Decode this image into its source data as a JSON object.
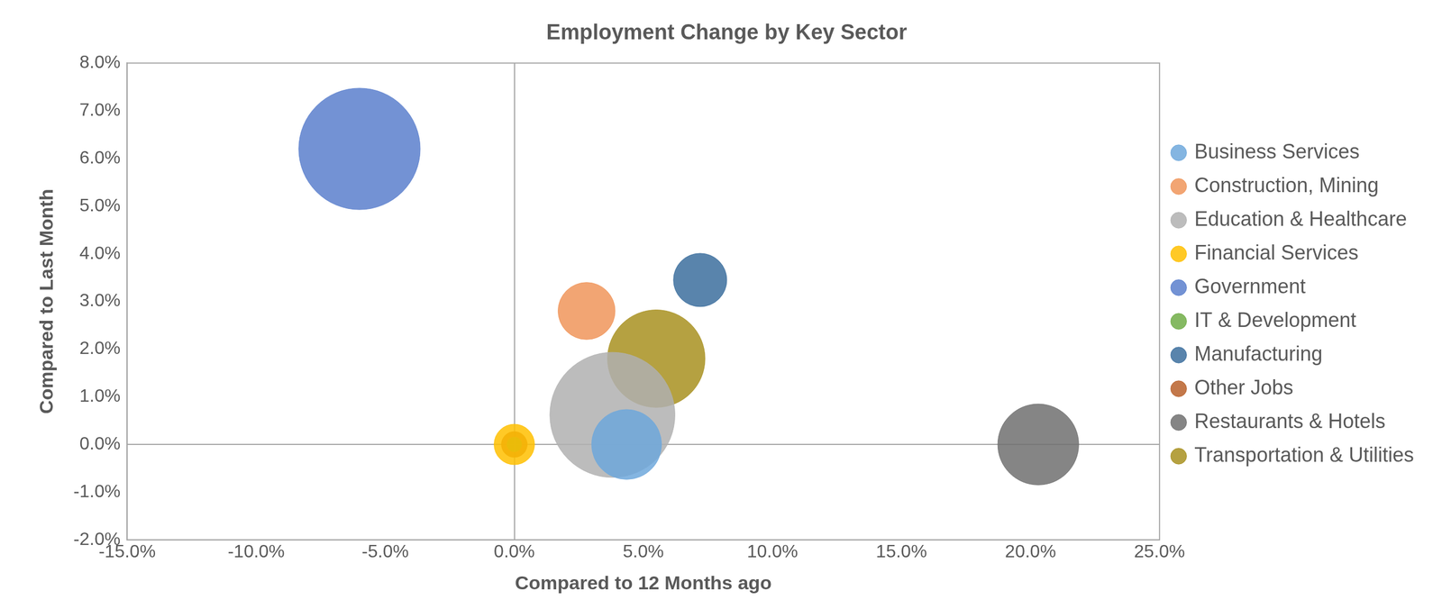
{
  "chart_data": {
    "type": "bubble",
    "title": "Employment Change by Key Sector",
    "x_label": "Compared to 12 Months ago",
    "y_label": "Compared to Last Month",
    "xlim": [
      -15,
      25
    ],
    "xticks": [
      {
        "value": -15,
        "label": "-15.0%"
      },
      {
        "value": -10,
        "label": "-10.0%"
      },
      {
        "value": -5,
        "label": "-5.0%"
      },
      {
        "value": 0,
        "label": "0.0%"
      },
      {
        "value": 5,
        "label": "5.0%"
      },
      {
        "value": 10,
        "label": "10.0%"
      },
      {
        "value": 15,
        "label": "15.0%"
      },
      {
        "value": 20,
        "label": "20.0%"
      },
      {
        "value": 25,
        "label": "25.0%"
      }
    ],
    "ylim": [
      -2,
      8
    ],
    "yticks": [
      {
        "value": -2,
        "label": "-2.0%"
      },
      {
        "value": -1,
        "label": "-1.0%"
      },
      {
        "value": 0,
        "label": "0.0%"
      },
      {
        "value": 1,
        "label": "1.0%"
      },
      {
        "value": 2,
        "label": "2.0%"
      },
      {
        "value": 3,
        "label": "3.0%"
      },
      {
        "value": 4,
        "label": "4.0%"
      },
      {
        "value": 5,
        "label": "5.0%"
      },
      {
        "value": 6,
        "label": "6.0%"
      },
      {
        "value": 7,
        "label": "7.0%"
      },
      {
        "value": 8,
        "label": "8.0%"
      }
    ],
    "grid": false,
    "legend": "right",
    "series": [
      {
        "name": "Business Services",
        "color": "#6fa8dc",
        "x": [
          4.35
        ],
        "values": [
          0.0
        ],
        "sizes": [
          38
        ]
      },
      {
        "name": "Construction, Mining",
        "color": "#f0955a",
        "x": [
          2.8
        ],
        "values": [
          2.8
        ],
        "sizes": [
          31
        ]
      },
      {
        "name": "Education & Healthcare",
        "color": "#b0b0b0",
        "x": [
          3.8
        ],
        "values": [
          0.62
        ],
        "sizes": [
          68
        ]
      },
      {
        "name": "Financial Services",
        "color": "#ffc000",
        "x": [
          0.0
        ],
        "values": [
          0.0
        ],
        "sizes": [
          22
        ]
      },
      {
        "name": "Government",
        "color": "#5b7fcc",
        "x": [
          -6.0
        ],
        "values": [
          6.2
        ],
        "sizes": [
          66
        ]
      },
      {
        "name": "IT & Development",
        "color": "#70ad47",
        "x": [
          0.0
        ],
        "values": [
          0.0
        ],
        "sizes": [
          8
        ]
      },
      {
        "name": "Manufacturing",
        "color": "#3c6e9e",
        "x": [
          7.2
        ],
        "values": [
          3.45
        ],
        "sizes": [
          29
        ]
      },
      {
        "name": "Other Jobs",
        "color": "#b8602a",
        "x": [
          0.0
        ],
        "values": [
          0.0
        ],
        "sizes": [
          14
        ]
      },
      {
        "name": "Restaurants & Hotels",
        "color": "#707070",
        "x": [
          20.3
        ],
        "values": [
          0.0
        ],
        "sizes": [
          44
        ]
      },
      {
        "name": "Transportation & Utilities",
        "color": "#a89020",
        "x": [
          5.5
        ],
        "values": [
          1.8
        ],
        "sizes": [
          53
        ]
      }
    ]
  }
}
